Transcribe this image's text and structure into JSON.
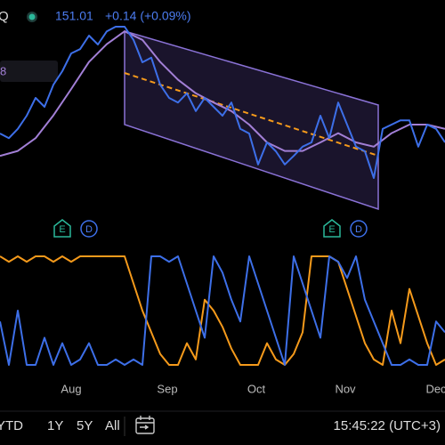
{
  "chart_data": {
    "type": "line",
    "header": {
      "symbol": "Q",
      "price": "151.01",
      "change": "+0.14 (+0.09%)",
      "indicator": "8"
    },
    "x": [
      0,
      1,
      2,
      3,
      4,
      5,
      6,
      7,
      8,
      9,
      10,
      11,
      12,
      13,
      14,
      15,
      16,
      17,
      18,
      19,
      20,
      21,
      22,
      23,
      24,
      25,
      26,
      27,
      28,
      29,
      30,
      31,
      32,
      33,
      34,
      35,
      36,
      37,
      38,
      39,
      40,
      41,
      42,
      43,
      44,
      45,
      46,
      47,
      48,
      49,
      50
    ],
    "xlim": [
      0,
      50
    ],
    "xticks": [
      {
        "value": 8,
        "label": "Aug"
      },
      {
        "value": 18.8,
        "label": "Sep"
      },
      {
        "value": 28.8,
        "label": "Oct"
      },
      {
        "value": 38.8,
        "label": "Nov"
      },
      {
        "value": 49,
        "label": "Dec"
      }
    ],
    "ylim": [
      139.5,
      169.5
    ],
    "series": [
      {
        "name": "Price",
        "color": "#3d6fe8",
        "values": [
          150.75,
          150.1,
          151.4,
          153.25,
          155.75,
          154.5,
          157.6,
          159.5,
          162,
          162.6,
          164.5,
          163.25,
          165.1,
          165.75,
          165.75,
          163.9,
          160.75,
          161.4,
          157.6,
          155.75,
          155.1,
          156.4,
          153.9,
          155.75,
          154.5,
          153.25,
          155.1,
          151.4,
          150.75,
          146.4,
          149.5,
          148.25,
          146.4,
          147.6,
          148.9,
          149.5,
          153.25,
          150.1,
          155.1,
          152,
          148.9,
          148.25,
          144.5,
          151.4,
          152,
          152.6,
          152.6,
          148.9,
          152,
          151.4,
          149.5
        ]
      },
      {
        "name": "MA",
        "color": "#a27fd6",
        "x": [
          0,
          2,
          4,
          6,
          8,
          10,
          12,
          14,
          16,
          18,
          20,
          22,
          24,
          26,
          28,
          30,
          32,
          34,
          36,
          38,
          40,
          42,
          44,
          46,
          48,
          50
        ],
        "values": [
          147.6,
          148.3,
          150.1,
          153.3,
          157,
          160.8,
          163.3,
          165.1,
          163.9,
          160.8,
          158.3,
          156.4,
          155.1,
          153.9,
          152,
          149.5,
          148.3,
          148.3,
          149.5,
          150.8,
          149.5,
          148.9,
          150.8,
          152,
          152,
          151.4
        ]
      }
    ],
    "indicator_ylim": [
      0,
      100
    ],
    "indicator_series": [
      {
        "name": "Up",
        "color": "#f59a1b",
        "values": [
          100,
          95,
          100,
          95,
          100,
          100,
          95,
          100,
          95,
          100,
          100,
          100,
          100,
          100,
          100,
          75,
          50,
          30,
          10,
          0,
          0,
          20,
          5,
          60,
          50,
          35,
          15,
          0,
          0,
          0,
          20,
          5,
          0,
          10,
          30,
          100,
          100,
          100,
          95,
          70,
          45,
          20,
          5,
          0,
          50,
          20,
          70,
          45,
          20,
          0,
          5
        ]
      },
      {
        "name": "Down",
        "color": "#3d6fe8",
        "values": [
          40,
          0,
          50,
          0,
          0,
          25,
          0,
          20,
          0,
          5,
          20,
          0,
          0,
          5,
          0,
          5,
          0,
          100,
          100,
          95,
          100,
          75,
          50,
          25,
          100,
          85,
          60,
          40,
          100,
          75,
          50,
          25,
          0,
          100,
          75,
          50,
          25,
          100,
          95,
          80,
          100,
          60,
          40,
          20,
          0,
          0,
          5,
          0,
          0,
          40,
          30
        ]
      }
    ],
    "events": [
      {
        "label": "E",
        "x": 7
      },
      {
        "label": "D",
        "x": 10
      },
      {
        "label": "E",
        "x": 37.3
      },
      {
        "label": "D",
        "x": 40.3
      }
    ],
    "toolbar": {
      "ranges": [
        "YTD",
        "1Y",
        "5Y",
        "All"
      ],
      "time": "15:45:22 (UTC+3)"
    }
  }
}
